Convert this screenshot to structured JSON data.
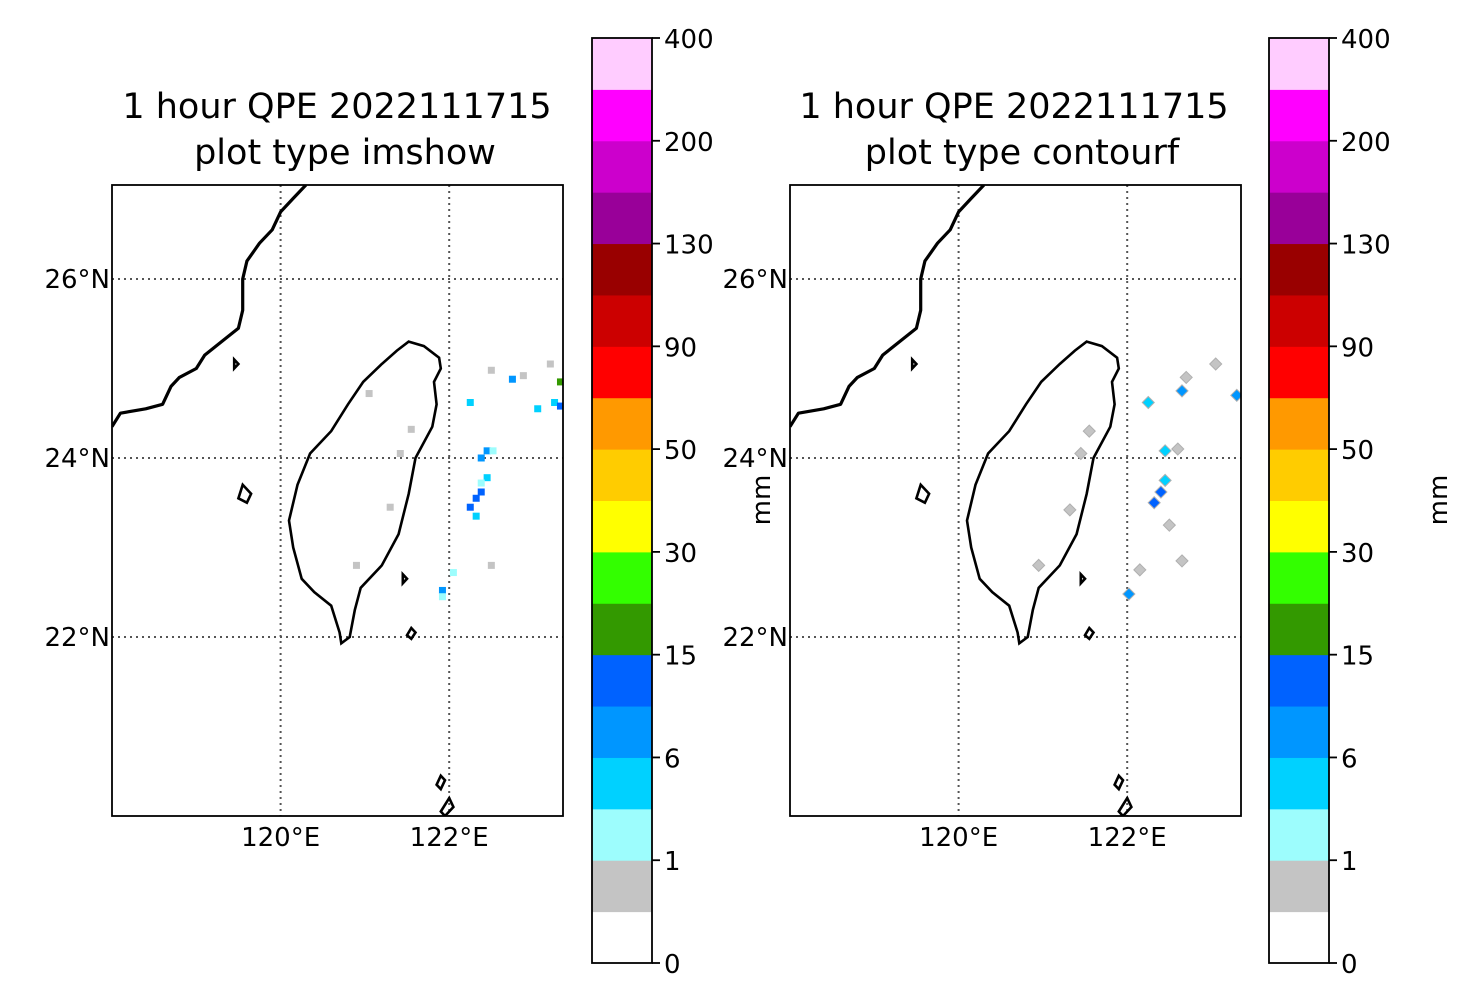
{
  "chart_data": [
    {
      "type": "heatmap",
      "title": "1 hour QPE 2022111715",
      "subtitle": "plot type imshow",
      "x_ticks": [
        "120°E",
        "122°E"
      ],
      "y_ticks": [
        "26°N",
        "24°N",
        "22°N"
      ],
      "x_tick_values": [
        120,
        122
      ],
      "y_tick_values": [
        26,
        24,
        22
      ],
      "xlim": [
        118,
        123.35
      ],
      "ylim": [
        20,
        27.05
      ],
      "grid": true,
      "colorbar": {
        "label": "mm",
        "tick_labels": [
          "0",
          "1",
          "6",
          "15",
          "30",
          "50",
          "90",
          "130",
          "200",
          "400"
        ],
        "bins": [
          {
            "color": "#ffffff"
          },
          {
            "color": "#c4c4c4"
          },
          {
            "color": "#9dfdfd"
          },
          {
            "color": "#00d1ff"
          },
          {
            "color": "#0096ff"
          },
          {
            "color": "#0062ff"
          },
          {
            "color": "#339900"
          },
          {
            "color": "#33ff00"
          },
          {
            "color": "#ffff00"
          },
          {
            "color": "#ffcc00"
          },
          {
            "color": "#ff9900"
          },
          {
            "color": "#ff0000"
          },
          {
            "color": "#cc0000"
          },
          {
            "color": "#990000"
          },
          {
            "color": "#990099"
          },
          {
            "color": "#cc00cc"
          },
          {
            "color": "#ff00ff"
          },
          {
            "color": "#ffccff"
          }
        ]
      },
      "cells": [
        {
          "lon": 122.25,
          "lat": 24.62,
          "mm": 2
        },
        {
          "lon": 122.45,
          "lat": 24.08,
          "mm": 4
        },
        {
          "lon": 122.52,
          "lat": 24.08,
          "mm": 1
        },
        {
          "lon": 122.38,
          "lat": 24.0,
          "mm": 4
        },
        {
          "lon": 122.45,
          "lat": 23.78,
          "mm": 2
        },
        {
          "lon": 122.38,
          "lat": 23.72,
          "mm": 1
        },
        {
          "lon": 122.38,
          "lat": 23.62,
          "mm": 8
        },
        {
          "lon": 122.32,
          "lat": 23.55,
          "mm": 8
        },
        {
          "lon": 122.25,
          "lat": 23.45,
          "mm": 8
        },
        {
          "lon": 122.32,
          "lat": 23.35,
          "mm": 2
        },
        {
          "lon": 122.5,
          "lat": 22.8,
          "mm": 0.5
        },
        {
          "lon": 122.05,
          "lat": 22.72,
          "mm": 1
        },
        {
          "lon": 121.92,
          "lat": 22.52,
          "mm": 4
        },
        {
          "lon": 121.92,
          "lat": 22.45,
          "mm": 1
        },
        {
          "lon": 122.5,
          "lat": 24.98,
          "mm": 0.5
        },
        {
          "lon": 122.75,
          "lat": 24.88,
          "mm": 4
        },
        {
          "lon": 122.88,
          "lat": 24.92,
          "mm": 0.5
        },
        {
          "lon": 123.05,
          "lat": 24.55,
          "mm": 2
        },
        {
          "lon": 123.25,
          "lat": 24.62,
          "mm": 2
        },
        {
          "lon": 123.32,
          "lat": 24.58,
          "mm": 8
        },
        {
          "lon": 123.32,
          "lat": 24.85,
          "mm": 10
        },
        {
          "lon": 123.2,
          "lat": 25.05,
          "mm": 0.5
        },
        {
          "lon": 121.55,
          "lat": 24.32,
          "mm": 0.5
        },
        {
          "lon": 121.42,
          "lat": 24.05,
          "mm": 0.5
        },
        {
          "lon": 121.3,
          "lat": 23.45,
          "mm": 0.5
        },
        {
          "lon": 120.9,
          "lat": 22.8,
          "mm": 0.5
        },
        {
          "lon": 121.05,
          "lat": 24.72,
          "mm": 0.5
        }
      ]
    },
    {
      "type": "heatmap",
      "title": "1 hour QPE 2022111715",
      "subtitle": "plot type contourf",
      "x_ticks": [
        "120°E",
        "122°E"
      ],
      "y_ticks": [
        "26°N",
        "24°N",
        "22°N"
      ],
      "x_tick_values": [
        120,
        122
      ],
      "y_tick_values": [
        26,
        24,
        22
      ],
      "xlim": [
        118,
        123.35
      ],
      "ylim": [
        20,
        27.05
      ],
      "grid": true,
      "colorbar": {
        "label": "mm",
        "tick_labels": [
          "0",
          "1",
          "6",
          "15",
          "30",
          "50",
          "90",
          "130",
          "200",
          "400"
        ]
      },
      "cells": [
        {
          "lon": 122.25,
          "lat": 24.62,
          "mm": 2
        },
        {
          "lon": 122.45,
          "lat": 24.08,
          "mm": 2
        },
        {
          "lon": 122.6,
          "lat": 24.1,
          "mm": 0.5
        },
        {
          "lon": 122.45,
          "lat": 23.75,
          "mm": 2
        },
        {
          "lon": 122.4,
          "lat": 23.62,
          "mm": 6
        },
        {
          "lon": 122.32,
          "lat": 23.5,
          "mm": 6
        },
        {
          "lon": 122.5,
          "lat": 23.25,
          "mm": 0.5
        },
        {
          "lon": 122.65,
          "lat": 22.85,
          "mm": 0.5
        },
        {
          "lon": 122.15,
          "lat": 22.75,
          "mm": 0.5
        },
        {
          "lon": 122.02,
          "lat": 22.48,
          "mm": 4
        },
        {
          "lon": 122.65,
          "lat": 24.75,
          "mm": 4
        },
        {
          "lon": 122.7,
          "lat": 24.9,
          "mm": 0.5
        },
        {
          "lon": 123.05,
          "lat": 25.05,
          "mm": 0.5
        },
        {
          "lon": 123.3,
          "lat": 24.7,
          "mm": 4
        },
        {
          "lon": 121.55,
          "lat": 24.3,
          "mm": 0.5
        },
        {
          "lon": 121.45,
          "lat": 24.05,
          "mm": 0.5
        },
        {
          "lon": 121.32,
          "lat": 23.42,
          "mm": 0.5
        },
        {
          "lon": 120.95,
          "lat": 22.8,
          "mm": 0.5
        }
      ]
    }
  ]
}
